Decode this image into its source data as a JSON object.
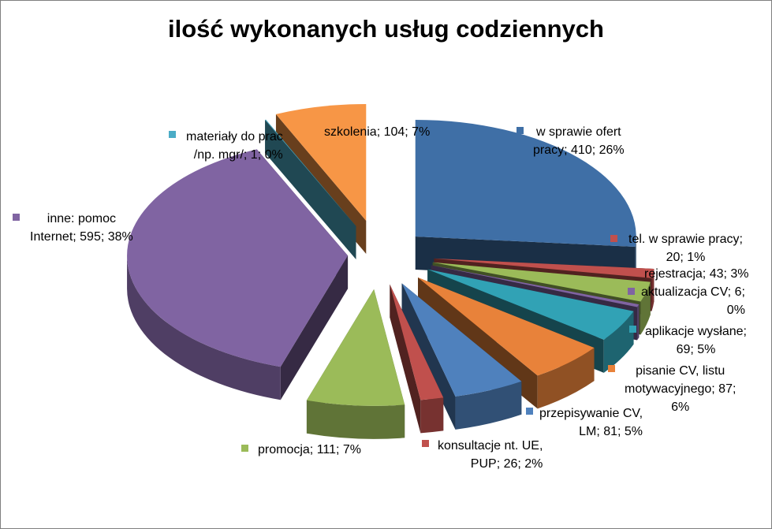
{
  "chart_data": {
    "type": "pie",
    "title": "ilość wykonanych usług codziennych",
    "slices": [
      {
        "name": "w sprawie ofert pracy",
        "value": 410,
        "percent": "26%",
        "color": "#3F6FA6",
        "label_lines": [
          "w sprawie ofert",
          "pracy; 410; 26%"
        ]
      },
      {
        "name": "tel. w sprawie pracy",
        "value": 20,
        "percent": "1%",
        "color": "#C0504D",
        "label_lines": [
          "tel. w sprawie pracy;",
          "20; 1%"
        ]
      },
      {
        "name": "rejestracja",
        "value": 43,
        "percent": "3%",
        "color": "#9BBB59",
        "label_lines": [
          "rejestracja; 43; 3%"
        ]
      },
      {
        "name": "aktualizacja CV",
        "value": 6,
        "percent": "0%",
        "color": "#8064A2",
        "label_lines": [
          "aktualizacja CV; 6;",
          "0%"
        ]
      },
      {
        "name": "aplikacje wysłane",
        "value": 69,
        "percent": "5%",
        "color": "#31A2B5",
        "label_lines": [
          "aplikacje wysłane;",
          "69; 5%"
        ]
      },
      {
        "name": "pisanie CV, listu motywacyjnego",
        "value": 87,
        "percent": "6%",
        "color": "#E8823A",
        "label_lines": [
          "pisanie CV, listu",
          "motywacyjnego; 87;",
          "6%"
        ]
      },
      {
        "name": "przepisywanie CV, LM",
        "value": 81,
        "percent": "5%",
        "color": "#4F81BD",
        "label_lines": [
          "przepisywanie CV,",
          "LM; 81; 5%"
        ]
      },
      {
        "name": "konsultacje nt. UE, PUP",
        "value": 26,
        "percent": "2%",
        "color": "#C0504D",
        "label_lines": [
          "konsultacje nt. UE,",
          "PUP; 26; 2%"
        ]
      },
      {
        "name": "promocja",
        "value": 111,
        "percent": "7%",
        "color": "#9BBB59",
        "label_lines": [
          "promocja; 111; 7%"
        ]
      },
      {
        "name": "inne: pomoc Internet",
        "value": 595,
        "percent": "38%",
        "color": "#8064A2",
        "label_lines": [
          "inne: pomoc",
          "Internet; 595; 38%"
        ]
      },
      {
        "name": "materiały do prac /np. mgr/",
        "value": 1,
        "percent": "0%",
        "color": "#4BACC6",
        "label_lines": [
          "materiały do prac",
          "/np. mgr/; 1; 0%"
        ]
      },
      {
        "name": "szkolenia",
        "value": 104,
        "percent": "7%",
        "color": "#F79646",
        "label_lines": [
          "szkolenia; 104; 7%"
        ]
      }
    ]
  }
}
